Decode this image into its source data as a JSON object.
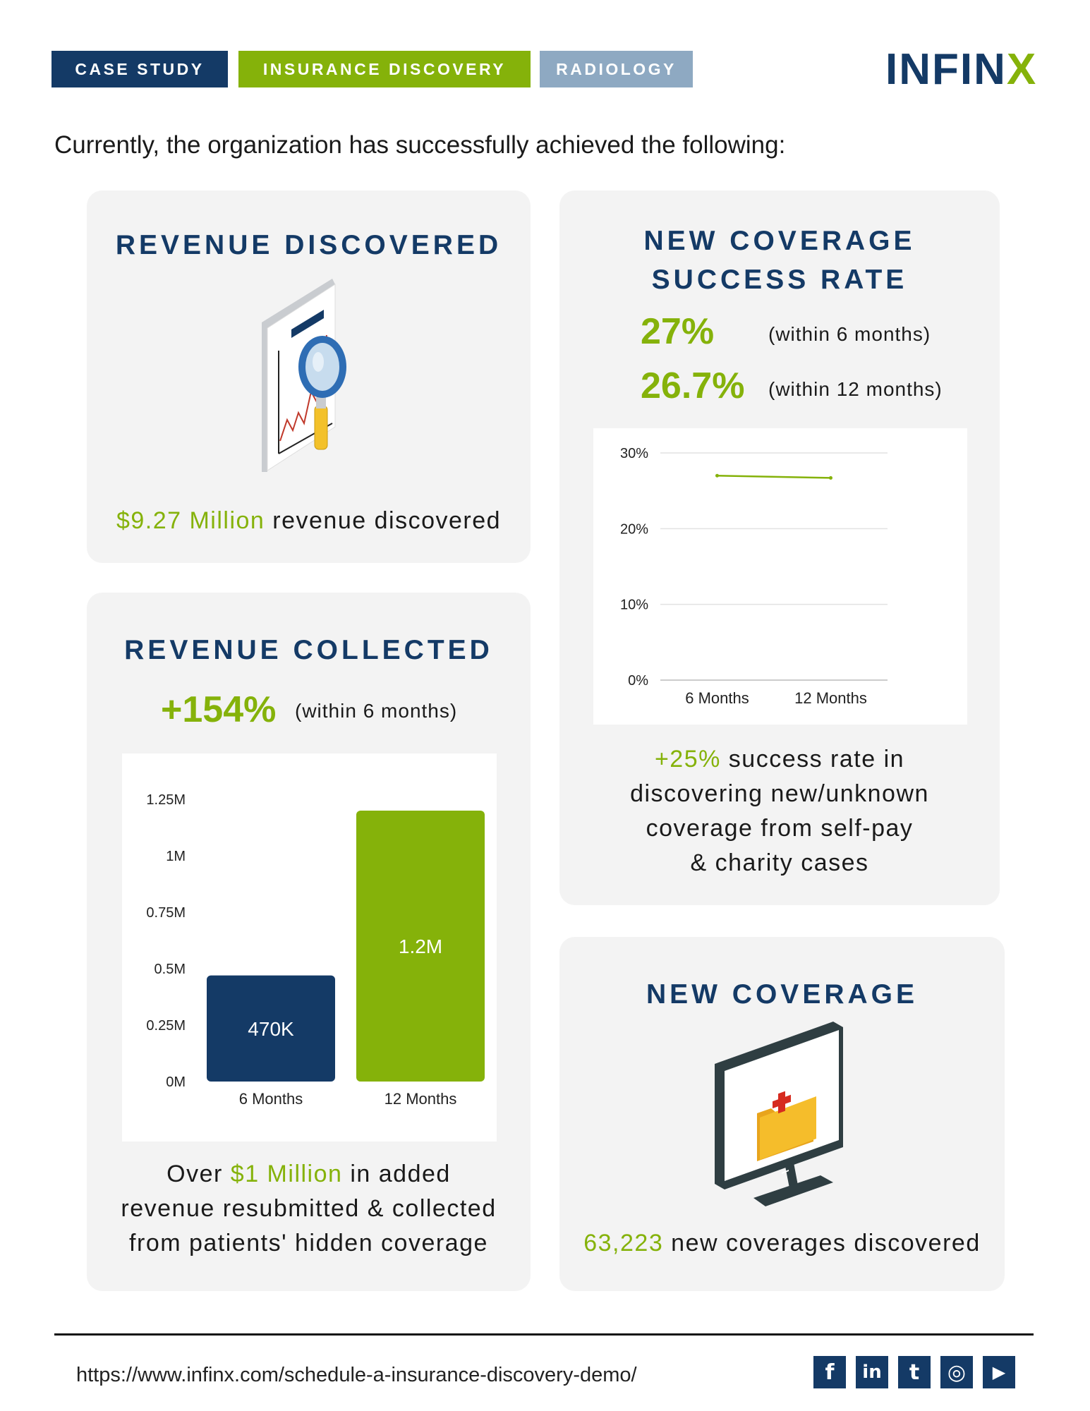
{
  "header": {
    "tags": [
      {
        "label": "CASE STUDY",
        "color": "#143a66"
      },
      {
        "label": "INSURANCE DISCOVERY",
        "color": "#85b20a"
      },
      {
        "label": "RADIOLOGY",
        "color": "#8ea9c2"
      }
    ],
    "logo": {
      "text_main": "INFIN",
      "text_accent": "X",
      "main_color": "#143a66",
      "accent_color": "#85b20a"
    }
  },
  "intro": "Currently, the organization has successfully achieved the following:",
  "revenue_discovered": {
    "title": "REVENUE DISCOVERED",
    "icon": "chart-magnifier-icon",
    "highlight": "$9.27 Million",
    "text": " revenue discovered"
  },
  "revenue_collected": {
    "title": "REVENUE COLLECTED",
    "stat": "+154%",
    "stat_note": "(within 6 months)",
    "body_line1_pre": "Over ",
    "body_line1_hl": "$1 Million",
    "body_line1_post": " in added",
    "body_line2": "revenue resubmitted & collected",
    "body_line3": "from patients' hidden coverage"
  },
  "success_rate": {
    "title_line1": "NEW COVERAGE",
    "title_line2": "SUCCESS RATE",
    "stat1": "27%",
    "stat1_note": "(within 6 months)",
    "stat2": "26.7%",
    "stat2_note": "(within 12 months)",
    "body_hl": "+25%",
    "body_line1_post": " success rate in",
    "body_line2": "discovering new/unknown",
    "body_line3": "coverage from self-pay",
    "body_line4": "& charity cases"
  },
  "new_coverage": {
    "title": "NEW COVERAGE",
    "icon": "monitor-medical-folder-icon",
    "highlight": "63,223",
    "text": " new coverages discovered"
  },
  "footer": {
    "url": "https://www.infinx.com/schedule-a-insurance-discovery-demo/",
    "social": [
      {
        "name": "facebook-icon",
        "glyph": "f"
      },
      {
        "name": "linkedin-icon",
        "glyph": "in"
      },
      {
        "name": "twitter-icon",
        "glyph": "t"
      },
      {
        "name": "instagram-icon",
        "glyph": "◎"
      },
      {
        "name": "youtube-icon",
        "glyph": "▶"
      }
    ]
  },
  "chart_data": [
    {
      "type": "bar",
      "categories": [
        "6 Months",
        "12 Months"
      ],
      "values": [
        470000,
        1200000
      ],
      "data_labels": [
        "470K",
        "1.2M"
      ],
      "bar_colors": [
        "#143a66",
        "#85b20a"
      ],
      "ylim": [
        0,
        1250000
      ],
      "yticks": [
        "0M",
        "0.25M",
        "0.5M",
        "0.75M",
        "1M",
        "1.25M"
      ],
      "grid": false
    },
    {
      "type": "line",
      "categories": [
        "6 Months",
        "12 Months"
      ],
      "values": [
        27,
        26.7
      ],
      "line_color": "#85b20a",
      "ylim": [
        0,
        30
      ],
      "yticks": [
        "0%",
        "10%",
        "20%",
        "30%"
      ],
      "grid": true
    }
  ]
}
